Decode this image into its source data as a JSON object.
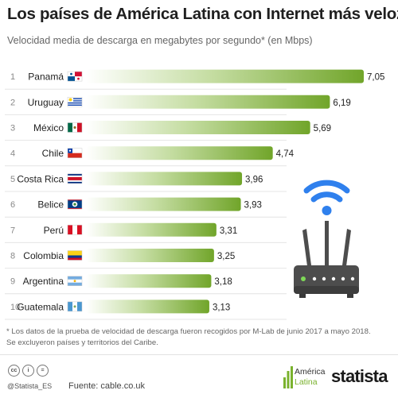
{
  "header": {
    "title": "Los países de América Latina con Internet más veloz",
    "subtitle": "Velocidad media de descarga en megabytes por segundo* (en Mbps)"
  },
  "chart_data": {
    "type": "bar",
    "orientation": "horizontal",
    "ranks": [
      "1",
      "2",
      "3",
      "4",
      "5",
      "6",
      "7",
      "8",
      "9",
      "10"
    ],
    "categories": [
      "Panamá",
      "Uruguay",
      "México",
      "Chile",
      "Costa Rica",
      "Belice",
      "Perú",
      "Colombia",
      "Argentina",
      "Guatemala"
    ],
    "values": [
      7.05,
      6.19,
      5.69,
      4.74,
      3.96,
      3.93,
      3.31,
      3.25,
      3.18,
      3.13
    ],
    "value_labels": [
      "7,05",
      "6,19",
      "5,69",
      "4,74",
      "3,96",
      "3,93",
      "3,31",
      "3,25",
      "3,18",
      "3,13"
    ],
    "title": "Los países de América Latina con Internet más veloz",
    "subtitle": "Velocidad media de descarga en megabytes por segundo* (en Mbps)",
    "xlim": [
      0,
      7.05
    ],
    "grid": false,
    "legend": "none",
    "colors": {
      "bar_start": "#ffffff",
      "bar_end": "#71a52a",
      "divider": "#e4e4e4"
    }
  },
  "flags": [
    "panama-flag-icon",
    "uruguay-flag-icon",
    "mexico-flag-icon",
    "chile-flag-icon",
    "costa-rica-flag-icon",
    "belize-flag-icon",
    "peru-flag-icon",
    "colombia-flag-icon",
    "argentina-flag-icon",
    "guatemala-flag-icon"
  ],
  "illustration": {
    "icon": "wifi-router-icon",
    "wifi_color": "#2f80ed",
    "router_color": "#4d4d4d"
  },
  "notes": [
    "* Los datos de la prueba de velocidad de descarga fueron recogidos por M-Lab de junio 2017 a mayo 2018.",
    "Se excluyeron países y territorios del Caribe."
  ],
  "footer": {
    "license_icons": [
      "cc",
      "i",
      "="
    ],
    "handle": "@Statista_ES",
    "source": "Fuente: cable.co.uk",
    "partner_logo_line1": "América",
    "partner_logo_line2": "Latina",
    "brand": "statista"
  }
}
